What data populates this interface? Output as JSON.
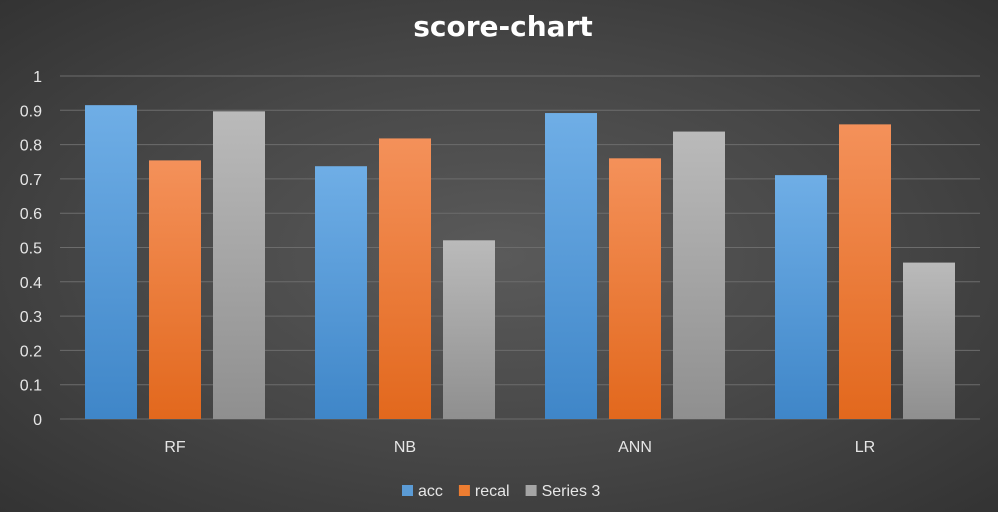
{
  "chart_data": {
    "type": "bar",
    "title": "score-chart",
    "categories": [
      "RF",
      "NB",
      "ANN",
      "LR"
    ],
    "series": [
      {
        "name": "acc",
        "values": [
          0.915,
          0.737,
          0.892,
          0.711
        ],
        "color": "#5b9bd5"
      },
      {
        "name": "recal",
        "values": [
          0.754,
          0.818,
          0.76,
          0.859
        ],
        "color": "#ed7d31"
      },
      {
        "name": "Series 3",
        "values": [
          0.897,
          0.521,
          0.838,
          0.456
        ],
        "color": "#a5a5a5"
      }
    ],
    "ylim": [
      0,
      1
    ],
    "yticks": [
      "0",
      "0.1",
      "0.2",
      "0.3",
      "0.4",
      "0.5",
      "0.6",
      "0.7",
      "0.8",
      "0.9",
      "1"
    ],
    "grid": true,
    "legend_position": "bottom"
  }
}
